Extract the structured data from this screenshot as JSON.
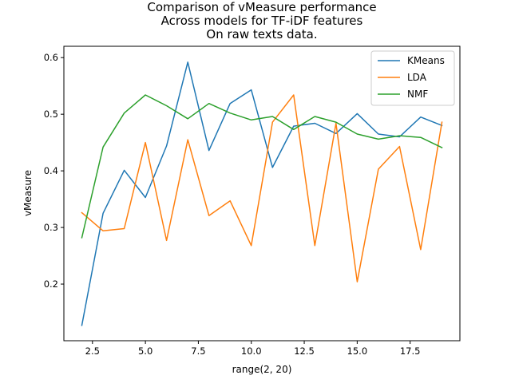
{
  "chart_data": {
    "type": "line",
    "title_lines": [
      "Comparison of vMeasure performance",
      "Across models for TF-iDF features",
      "On raw texts data."
    ],
    "xlabel": "range(2, 20)",
    "ylabel": "vMeasure",
    "xlim": [
      1.15,
      19.85
    ],
    "ylim": [
      0.1,
      0.62
    ],
    "xticks": [
      2.5,
      5.0,
      7.5,
      10.0,
      12.5,
      15.0,
      17.5
    ],
    "xtick_labels": [
      "2.5",
      "5.0",
      "7.5",
      "10.0",
      "12.5",
      "15.0",
      "17.5"
    ],
    "yticks": [
      0.2,
      0.3,
      0.4,
      0.5,
      0.6
    ],
    "ytick_labels": [
      "0.2",
      "0.3",
      "0.4",
      "0.5",
      "0.6"
    ],
    "grid": false,
    "legend_position": "top-right",
    "x": [
      2,
      3,
      4,
      5,
      6,
      7,
      8,
      9,
      10,
      11,
      12,
      13,
      14,
      15,
      16,
      17,
      18,
      19
    ],
    "series": [
      {
        "name": "KMeans",
        "color": "#1f77b4",
        "values": [
          0.127,
          0.325,
          0.401,
          0.353,
          0.444,
          0.592,
          0.436,
          0.519,
          0.543,
          0.406,
          0.479,
          0.484,
          0.466,
          0.501,
          0.465,
          0.46,
          0.495,
          0.48
        ]
      },
      {
        "name": "LDA",
        "color": "#ff7f0e",
        "values": [
          0.326,
          0.294,
          0.298,
          0.45,
          0.277,
          0.455,
          0.321,
          0.347,
          0.268,
          0.486,
          0.534,
          0.268,
          0.484,
          0.204,
          0.403,
          0.443,
          0.261,
          0.486
        ]
      },
      {
        "name": "NMF",
        "color": "#2ca02c",
        "values": [
          0.282,
          0.442,
          0.502,
          0.534,
          0.515,
          0.492,
          0.519,
          0.502,
          0.49,
          0.496,
          0.473,
          0.496,
          0.486,
          0.465,
          0.456,
          0.462,
          0.459,
          0.441
        ]
      }
    ]
  }
}
